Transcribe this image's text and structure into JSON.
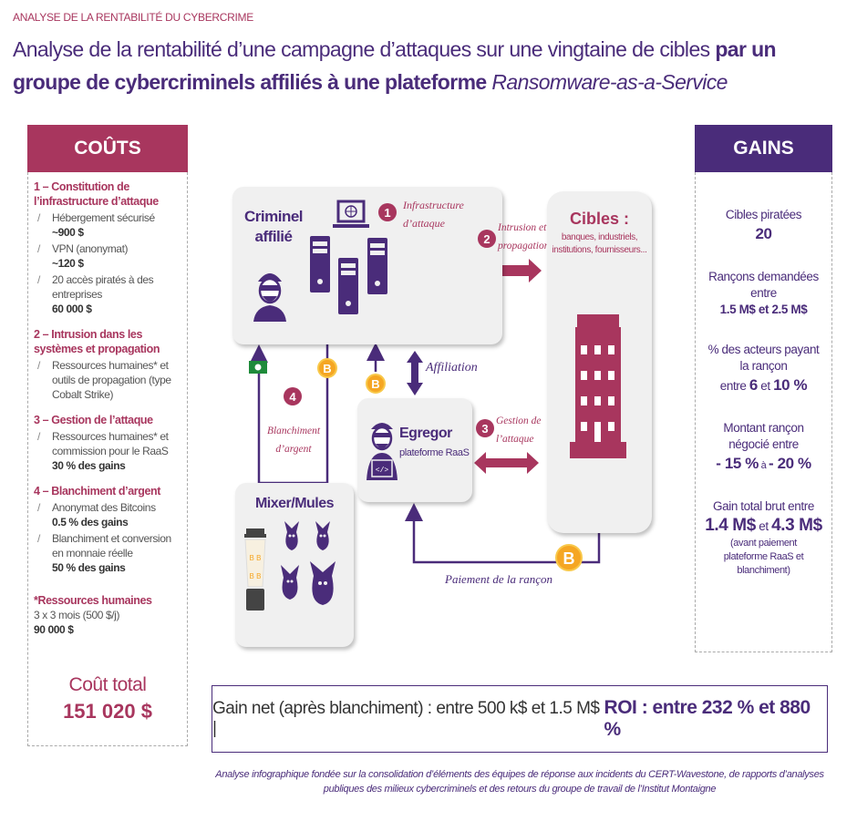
{
  "header": {
    "top_label": "ANALYSE DE LA RENTABILITÉ DU CYBERCRIME",
    "title_part1": "Analyse de la rentabilité d’une campagne d’attaques sur une vingtaine de cibles ",
    "title_bold": "par un groupe de cybercriminels affiliés à une plateforme ",
    "title_italic": "Ransomware-as-a-Service"
  },
  "costs": {
    "heading": "COÛTS",
    "sections": [
      {
        "title": "1 – Constitution de l’infrastructure d’attaque",
        "items": [
          {
            "label": "Hébergement sécurisé",
            "value": "~900 $"
          },
          {
            "label": "VPN (anonymat)",
            "value": "~120 $"
          },
          {
            "label": "20 accès piratés à des entreprises",
            "value": "60 000 $"
          }
        ]
      },
      {
        "title": "2 – Intrusion dans les systèmes et propagation",
        "items": [
          {
            "label": "Ressources humaines* et outils de propagation (type Cobalt Strike)",
            "value": ""
          }
        ]
      },
      {
        "title": "3 – Gestion de l’attaque",
        "items": [
          {
            "label": "Ressources humaines* et commission pour le RaaS",
            "value": "30 % des gains"
          }
        ]
      },
      {
        "title": "4 – Blanchiment d’argent",
        "items": [
          {
            "label": "Anonymat des Bitcoins",
            "value": "0.5 % des gains"
          },
          {
            "label": "Blanchiment et conversion en monnaie réelle",
            "value": "50 % des gains"
          }
        ]
      }
    ],
    "hr_note": {
      "title": "*Ressources humaines",
      "text": "3  x 3 mois (500 $/j)",
      "value": "90 000 $"
    },
    "total_label": "Coût total",
    "total_value": "151 020 $"
  },
  "gains": {
    "heading": "GAINS",
    "targets_label": "Cibles piratées",
    "targets_value": "20",
    "ransom_label": "Rançons demandées entre",
    "ransom_value": "1.5 M$ et 2.5 M$",
    "paying_label": "% des acteurs payant la rançon",
    "paying_pre": "entre ",
    "paying_min": "6",
    "paying_mid": " et ",
    "paying_max": "10 %",
    "nego_label": "Montant rançon négocié entre",
    "nego_min": "- 15 %",
    "nego_mid": " à ",
    "nego_max": "- 20 %",
    "gross_label": "Gain total brut entre",
    "gross_min": "1.4 M$",
    "gross_mid": " et ",
    "gross_max": "4.3 M$",
    "gross_note": "(avant paiement plateforme RaaS et blanchiment)"
  },
  "diagram": {
    "criminel": "Criminel affilié",
    "step1_num": "1",
    "step1": "Infrastructure d’attaque",
    "step2_num": "2",
    "step2": "Intrusion et propagation",
    "step3_num": "3",
    "step3": "Gestion de l’attaque",
    "step4_num": "4",
    "step4": "Blanchiment d’argent",
    "cibles_title": "Cibles :",
    "cibles_sub": "banques, industriels, institutions, fournisseurs...",
    "affiliation": "Affiliation",
    "egregor": "Egregor",
    "egregor_sub": "plateforme RaaS",
    "mixer": "Mixer/Mules",
    "payment": "Paiement de la rançon"
  },
  "summary": {
    "net_gain": "Gain net (après blanchiment) : entre 500 k$ et 1.5 M$ | ",
    "roi": "ROI : entre 232 % et 880 %"
  },
  "footnote": "Analyse infographique fondée sur la consolidation d’éléments des équipes de réponse aux incidents du CERT-Wavestone, de rapports d’analyses publiques des milieux cybercriminels et des retours du groupe de travail de l’Institut Montaigne",
  "colors": {
    "crimson": "#a8365e",
    "purple": "#4a2c7a",
    "bitcoin": "#f5a623",
    "panel": "#f0f0f0"
  }
}
